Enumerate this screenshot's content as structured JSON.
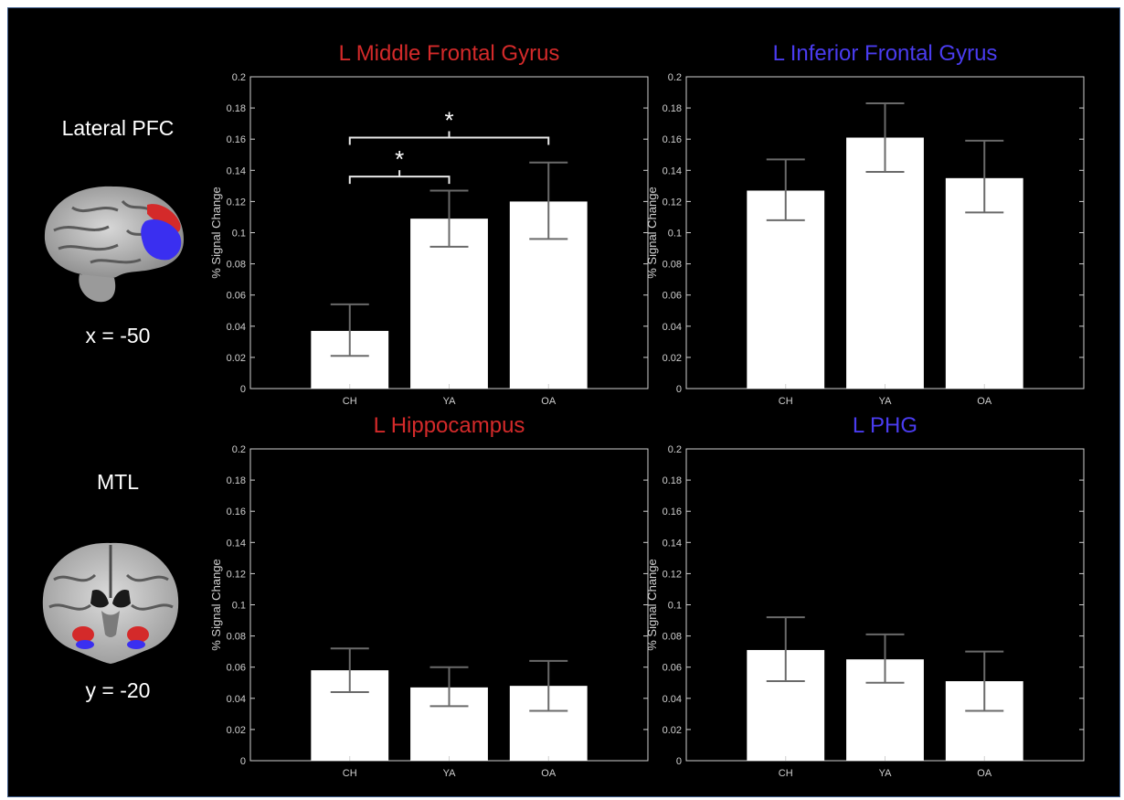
{
  "regions": [
    {
      "label": "Lateral PFC",
      "coord": "x = -50",
      "brain_icon": "sagittal-brain-icon"
    },
    {
      "label": "MTL",
      "coord": "y = -20",
      "brain_icon": "coronal-brain-icon"
    }
  ],
  "colors": {
    "red": "#d42a2a",
    "blue": "#4a3cf0",
    "bar": "#ffffff",
    "axis": "#d0d0d0",
    "background": "#000000"
  },
  "chart_data": [
    {
      "type": "bar",
      "title": "L Middle Frontal Gyrus",
      "title_color": "#d42a2a",
      "categories": [
        "CH",
        "YA",
        "OA"
      ],
      "values": [
        0.037,
        0.109,
        0.12
      ],
      "error_low": [
        0.021,
        0.091,
        0.096
      ],
      "error_high": [
        0.054,
        0.127,
        0.145
      ],
      "ylabel": "% Signal Change",
      "ylim": [
        0,
        0.2
      ],
      "yticks": [
        "0",
        "0.02",
        "0.04",
        "0.06",
        "0.08",
        "0.1",
        "0.12",
        "0.14",
        "0.16",
        "0.18",
        "0.2"
      ],
      "significance": [
        {
          "from": "CH",
          "to": "YA",
          "marker": "*"
        },
        {
          "from": "CH",
          "to": "OA",
          "marker": "*"
        }
      ]
    },
    {
      "type": "bar",
      "title": "L Inferior Frontal Gyrus",
      "title_color": "#4a3cf0",
      "categories": [
        "CH",
        "YA",
        "OA"
      ],
      "values": [
        0.127,
        0.161,
        0.135
      ],
      "error_low": [
        0.108,
        0.139,
        0.113
      ],
      "error_high": [
        0.147,
        0.183,
        0.159
      ],
      "ylabel": "% Signal Change",
      "ylim": [
        0,
        0.2
      ],
      "yticks": [
        "0",
        "0.02",
        "0.04",
        "0.06",
        "0.08",
        "0.1",
        "0.12",
        "0.14",
        "0.16",
        "0.18",
        "0.2"
      ],
      "significance": []
    },
    {
      "type": "bar",
      "title": "L Hippocampus",
      "title_color": "#d42a2a",
      "categories": [
        "CH",
        "YA",
        "OA"
      ],
      "values": [
        0.058,
        0.047,
        0.048
      ],
      "error_low": [
        0.044,
        0.035,
        0.032
      ],
      "error_high": [
        0.072,
        0.06,
        0.064
      ],
      "ylabel": "% Signal Change",
      "ylim": [
        0,
        0.2
      ],
      "yticks": [
        "0",
        "0.02",
        "0.04",
        "0.06",
        "0.08",
        "0.1",
        "0.12",
        "0.14",
        "0.16",
        "0.18",
        "0.2"
      ],
      "significance": []
    },
    {
      "type": "bar",
      "title": "L PHG",
      "title_color": "#4a3cf0",
      "categories": [
        "CH",
        "YA",
        "OA"
      ],
      "values": [
        0.071,
        0.065,
        0.051
      ],
      "error_low": [
        0.051,
        0.05,
        0.032
      ],
      "error_high": [
        0.092,
        0.081,
        0.07
      ],
      "ylabel": "% Signal Change",
      "ylim": [
        0,
        0.2
      ],
      "yticks": [
        "0",
        "0.02",
        "0.04",
        "0.06",
        "0.08",
        "0.1",
        "0.12",
        "0.14",
        "0.16",
        "0.18",
        "0.2"
      ],
      "significance": []
    }
  ]
}
